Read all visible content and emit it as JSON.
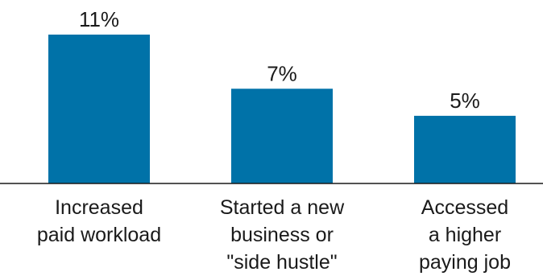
{
  "chart_data": {
    "type": "bar",
    "categories": [
      [
        "Increased",
        "paid workload"
      ],
      [
        "Started a new",
        "business or",
        "\"side hustle\""
      ],
      [
        "Accessed",
        "a higher",
        "paying job"
      ]
    ],
    "values": [
      11,
      7,
      5
    ],
    "value_labels": [
      "11%",
      "7%",
      "5%"
    ],
    "ylim": [
      0,
      11
    ],
    "colors": {
      "bar": "#0072a8",
      "axis": "#1a1a1a",
      "text": "#1a1a1a"
    },
    "grid": false,
    "legend": "none"
  }
}
